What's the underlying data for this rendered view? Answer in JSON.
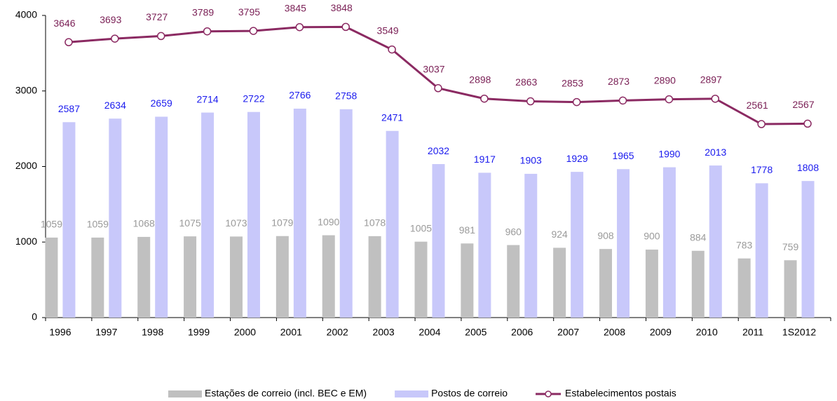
{
  "chart_data": {
    "type": "bar",
    "categories": [
      "1996",
      "1997",
      "1998",
      "1999",
      "2000",
      "2001",
      "2002",
      "2003",
      "2004",
      "2005",
      "2006",
      "2007",
      "2008",
      "2009",
      "2010",
      "2011",
      "1S2012"
    ],
    "series": [
      {
        "name": "Estações de correio (incl. BEC e EM)",
        "color": "#c0c0c0",
        "values": [
          1059,
          1059,
          1068,
          1075,
          1073,
          1079,
          1090,
          1078,
          1005,
          981,
          960,
          924,
          908,
          900,
          884,
          783,
          759
        ]
      },
      {
        "name": "Postos de correio",
        "color": "#c8c8fa",
        "values": [
          2587,
          2634,
          2659,
          2714,
          2722,
          2766,
          2758,
          2471,
          2032,
          1917,
          1903,
          1929,
          1965,
          1990,
          2013,
          1778,
          1808
        ]
      },
      {
        "name": "Estabelecimentos postais",
        "type": "line",
        "color": "#8b2a62",
        "values": [
          3646,
          3693,
          3727,
          3789,
          3795,
          3845,
          3848,
          3549,
          3037,
          2898,
          2863,
          2853,
          2873,
          2890,
          2897,
          2561,
          2567
        ]
      }
    ],
    "ylim": [
      0,
      4000
    ],
    "yticks": [
      0,
      1000,
      2000,
      3000,
      4000
    ],
    "grid": false,
    "legend": "bottom"
  }
}
